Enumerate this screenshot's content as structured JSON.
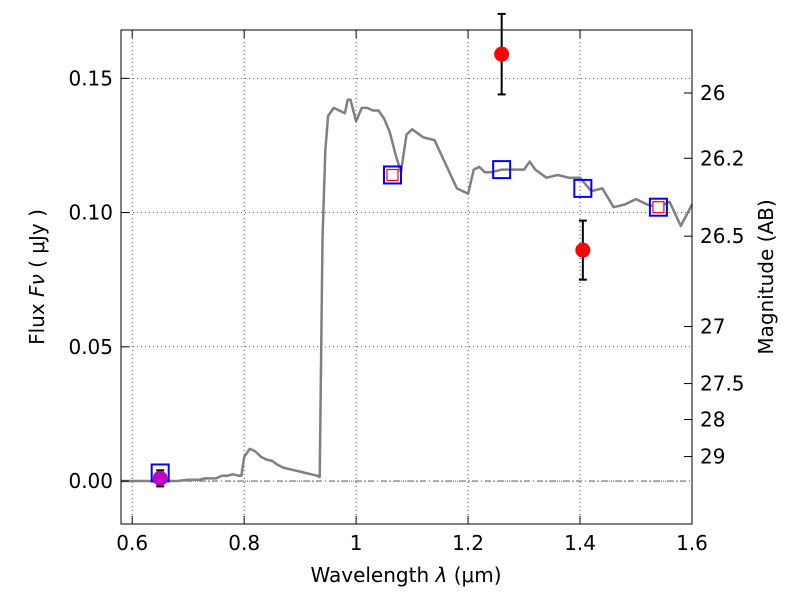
{
  "chart_data": {
    "type": "line",
    "title": "",
    "xlabel_prefix": "Wavelength",
    "xlabel_symbol": "λ",
    "xlabel_unit": "(μm)",
    "ylabel_prefix": "Flux",
    "ylabel_symbol": "Fν",
    "ylabel_unit": "( μJy )",
    "y2label": "Magnitude (AB)",
    "xlim": [
      0.58,
      1.6
    ],
    "ylim": [
      -0.016,
      0.168
    ],
    "grid": true,
    "x_ticks": [
      0.6,
      0.8,
      1.0,
      1.2,
      1.4,
      1.6
    ],
    "x_tick_labels": [
      "0.6",
      "0.8",
      "1",
      "1.2",
      "1.4",
      "1.6"
    ],
    "y_ticks": [
      0.0,
      0.05,
      0.1,
      0.15
    ],
    "y_tick_labels": [
      "0.00",
      "0.05",
      "0.10",
      "0.15"
    ],
    "y2_ticks": [
      {
        "mag": 26,
        "label": "26"
      },
      {
        "mag": 26.2,
        "label": "26.2"
      },
      {
        "mag": 26.5,
        "label": "26.5"
      },
      {
        "mag": 27,
        "label": "27"
      },
      {
        "mag": 27.5,
        "label": "27.5"
      },
      {
        "mag": 28,
        "label": "28"
      },
      {
        "mag": 29,
        "label": "29"
      }
    ],
    "zero_line": 0.0,
    "colors": {
      "model": "#808080",
      "model_phot": "#0000ff",
      "obs_phot": "#ff0000",
      "upper": "#c000c0",
      "errorbar": "#000000"
    },
    "series": [
      {
        "kind": "model_spectrum",
        "x": [
          0.58,
          0.6,
          0.62,
          0.64,
          0.66,
          0.68,
          0.7,
          0.72,
          0.73,
          0.74,
          0.75,
          0.76,
          0.77,
          0.78,
          0.79,
          0.795,
          0.8,
          0.81,
          0.82,
          0.83,
          0.84,
          0.85,
          0.86,
          0.87,
          0.88,
          0.89,
          0.9,
          0.91,
          0.92,
          0.93,
          0.935,
          0.94,
          0.945,
          0.95,
          0.96,
          0.97,
          0.98,
          0.985,
          0.99,
          1.0,
          1.01,
          1.02,
          1.03,
          1.04,
          1.05,
          1.06,
          1.07,
          1.08,
          1.09,
          1.1,
          1.12,
          1.14,
          1.16,
          1.18,
          1.2,
          1.21,
          1.22,
          1.23,
          1.24,
          1.26,
          1.28,
          1.3,
          1.31,
          1.32,
          1.34,
          1.36,
          1.38,
          1.4,
          1.42,
          1.44,
          1.46,
          1.48,
          1.5,
          1.52,
          1.54,
          1.56,
          1.58,
          1.6
        ],
        "y": [
          0.0,
          0.0,
          0.0,
          0.0,
          0.0,
          0.0,
          0.0005,
          0.0005,
          0.001,
          0.001,
          0.001,
          0.002,
          0.002,
          0.0025,
          0.002,
          0.002,
          0.009,
          0.012,
          0.011,
          0.009,
          0.008,
          0.0075,
          0.006,
          0.005,
          0.0045,
          0.004,
          0.0035,
          0.003,
          0.0025,
          0.002,
          0.0015,
          0.09,
          0.123,
          0.136,
          0.139,
          0.138,
          0.137,
          0.142,
          0.142,
          0.134,
          0.139,
          0.139,
          0.138,
          0.138,
          0.135,
          0.13,
          0.122,
          0.115,
          0.129,
          0.131,
          0.128,
          0.127,
          0.118,
          0.109,
          0.107,
          0.116,
          0.117,
          0.115,
          0.115,
          0.116,
          0.116,
          0.116,
          0.119,
          0.116,
          0.113,
          0.114,
          0.113,
          0.113,
          0.108,
          0.109,
          0.102,
          0.103,
          0.105,
          0.103,
          0.102,
          0.104,
          0.095,
          0.103
        ]
      },
      {
        "kind": "model_photometry",
        "name": "",
        "x": [
          0.65,
          1.065,
          1.26,
          1.405,
          1.54
        ],
        "y": [
          0.003,
          0.114,
          0.116,
          0.109,
          0.102
        ]
      },
      {
        "kind": "model_photometry_small",
        "name": "",
        "x": [
          1.065,
          1.54
        ],
        "y": [
          0.114,
          0.102
        ]
      },
      {
        "kind": "observed_photometry",
        "name": "",
        "x": [
          1.26,
          1.405
        ],
        "y": [
          0.159,
          0.086
        ],
        "err": [
          0.015,
          0.011
        ]
      },
      {
        "kind": "upper_limit",
        "name": "",
        "x": [
          0.65
        ],
        "y": [
          0.001
        ],
        "err": [
          0.003
        ]
      }
    ]
  }
}
